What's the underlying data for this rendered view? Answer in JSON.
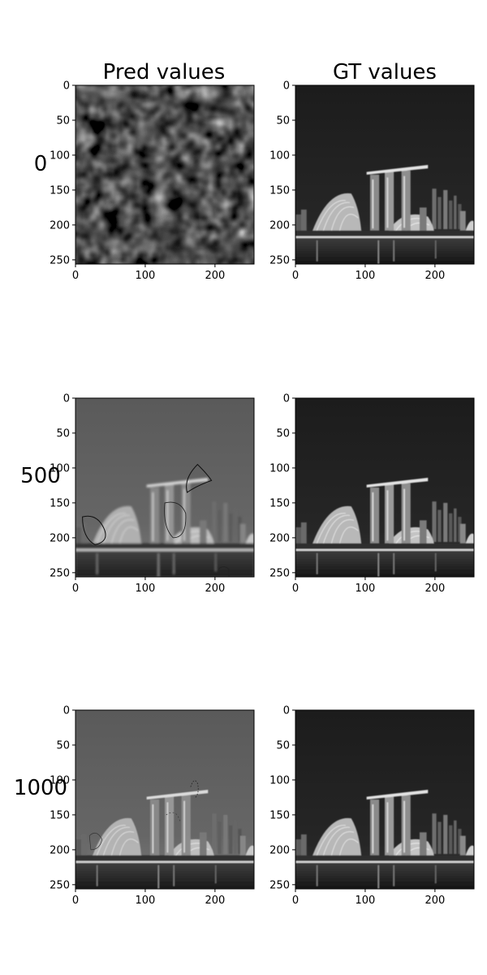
{
  "column_titles": [
    "Pred values",
    "GT values"
  ],
  "row_labels": [
    "0",
    "500",
    "1000"
  ],
  "chart_data": {
    "type": "heatmap",
    "colormap": "gray",
    "grid": false,
    "columns": [
      "Pred values",
      "GT values"
    ],
    "rows": [
      "0",
      "500",
      "1000"
    ],
    "xlim": [
      0,
      256
    ],
    "ylim": [
      256,
      0
    ],
    "xticks": [
      0,
      100,
      200
    ],
    "yticks": [
      0,
      50,
      100,
      150,
      200,
      250
    ],
    "panels": [
      {
        "row": "0",
        "column": "Pred values",
        "content": "noise"
      },
      {
        "row": "0",
        "column": "GT values",
        "content": "image"
      },
      {
        "row": "500",
        "column": "Pred values",
        "content": "blurred image"
      },
      {
        "row": "500",
        "column": "GT values",
        "content": "image"
      },
      {
        "row": "1000",
        "column": "Pred values",
        "content": "blurred image"
      },
      {
        "row": "1000",
        "column": "GT values",
        "content": "image"
      }
    ]
  }
}
